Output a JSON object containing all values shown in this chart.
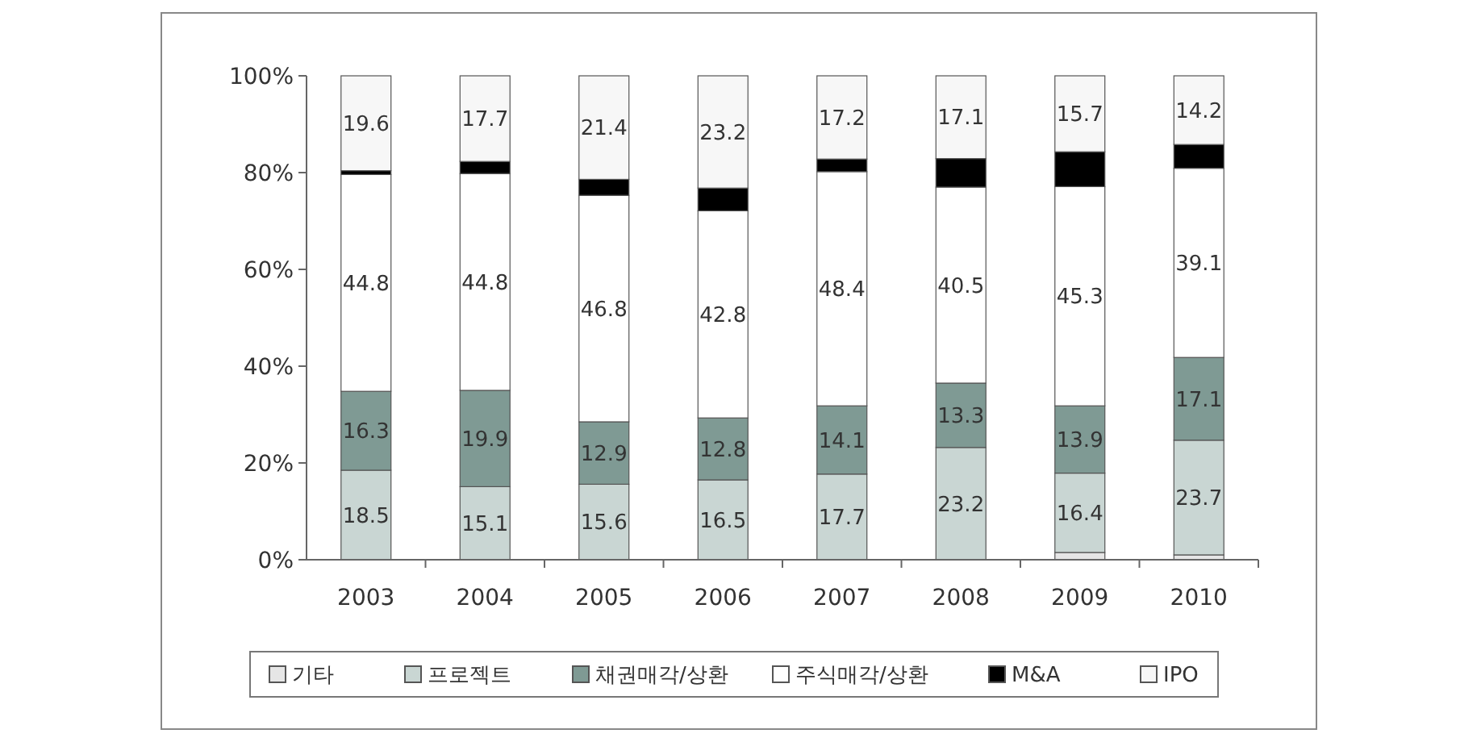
{
  "chart_data": {
    "type": "bar",
    "stacked": true,
    "categories": [
      "2003",
      "2004",
      "2005",
      "2006",
      "2007",
      "2008",
      "2009",
      "2010"
    ],
    "ylim": [
      0,
      100
    ],
    "yticks": [
      {
        "value": 0,
        "label": "0%"
      },
      {
        "value": 20,
        "label": "20%"
      },
      {
        "value": 40,
        "label": "40%"
      },
      {
        "value": 60,
        "label": "60%"
      },
      {
        "value": 80,
        "label": "80%"
      },
      {
        "value": 100,
        "label": "100%"
      }
    ],
    "legend": "bottom",
    "series": [
      {
        "name": "기타",
        "color": "#e6e6e6",
        "values": [
          0,
          0,
          0,
          0,
          0,
          0,
          1.5,
          1
        ]
      },
      {
        "name": "프로젝트",
        "color": "#c9d6d3",
        "values": [
          18.5,
          15.1,
          15.6,
          16.5,
          17.7,
          23.2,
          16.4,
          23.7
        ],
        "value_labels": [
          "18.5",
          "15.1",
          "15.6",
          "16.5",
          "17.7",
          "23.2",
          "16.4",
          "23.7"
        ]
      },
      {
        "name": "채권매각/상환",
        "color": "#7f9a94",
        "values": [
          16.3,
          19.9,
          12.9,
          12.8,
          14.1,
          13.3,
          13.9,
          17.1
        ],
        "value_labels": [
          "16.3",
          "19.9",
          "12.9",
          "12.8",
          "14.1",
          "13.3",
          "13.9",
          "17.1"
        ]
      },
      {
        "name": "주식매각/상환",
        "color": "#ffffff",
        "values": [
          44.8,
          44.8,
          46.8,
          42.8,
          48.4,
          40.5,
          45.3,
          39.1
        ],
        "value_labels": [
          "44.8",
          "44.8",
          "46.8",
          "42.8",
          "48.4",
          "40.5",
          "45.3",
          "39.1"
        ]
      },
      {
        "name": "M&A",
        "color": "#000000",
        "values": [
          0.8,
          2.5,
          3.3,
          4.7,
          2.6,
          5.9,
          7.2,
          4.9
        ]
      },
      {
        "name": "IPO",
        "color": "#f7f7f7",
        "values": [
          19.6,
          17.7,
          21.4,
          23.2,
          17.2,
          17.1,
          15.7,
          14.2
        ],
        "value_labels": [
          "19.6",
          "17.7",
          "21.4",
          "23.2",
          "17.2",
          "17.1",
          "15.7",
          "14.2"
        ]
      }
    ]
  }
}
